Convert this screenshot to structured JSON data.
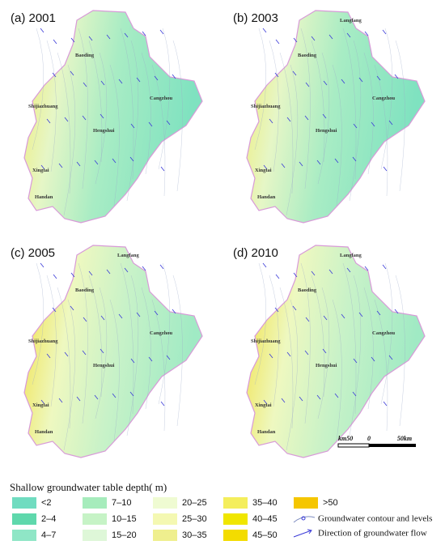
{
  "panels": [
    {
      "title": "(a) 2001",
      "cities": [
        "Baoding",
        "Cangzhou",
        "Shijiazhuang",
        "Hengshui",
        "Xingtai",
        "Handan"
      ]
    },
    {
      "title": "(b) 2003",
      "cities": [
        "Langfang",
        "Baoding",
        "Cangzhou",
        "Shijiazhuang",
        "Hengshui",
        "Xingtai",
        "Handan"
      ]
    },
    {
      "title": "(c) 2005",
      "cities": [
        "Langfang",
        "Baoding",
        "Cangzhou",
        "Shijiazhuang",
        "Hengshui",
        "Xingtai",
        "Handan"
      ]
    },
    {
      "title": "(d) 2010",
      "cities": [
        "Langfang",
        "Baoding",
        "Cangzhou",
        "Shijiazhuang",
        "Hengshui",
        "Xingtai",
        "Handan"
      ]
    }
  ],
  "scale_bar": {
    "labels": [
      "km50",
      "0",
      "50km"
    ]
  },
  "legend": {
    "title": "Shallow groundwater table depth( m)",
    "classes": [
      {
        "label": "<2",
        "color": "#70dcc0"
      },
      {
        "label": "2–4",
        "color": "#5fd8ac"
      },
      {
        "label": "4–7",
        "color": "#8fe6c6"
      },
      {
        "label": "7–10",
        "color": "#a6ecbc"
      },
      {
        "label": "10–15",
        "color": "#c6f3c6"
      },
      {
        "label": "15–20",
        "color": "#def7d8"
      },
      {
        "label": "20–25",
        "color": "#effbd2"
      },
      {
        "label": "25–30",
        "color": "#f4f8b2"
      },
      {
        "label": "30–35",
        "color": "#efef8e"
      },
      {
        "label": "35–40",
        "color": "#f4ee5c"
      },
      {
        "label": "40–45",
        "color": "#f0e600"
      },
      {
        "label": "45–50",
        "color": "#f3dc00"
      },
      {
        "label": ">50",
        "color": "#f5c600"
      }
    ],
    "symbols": [
      "Groundwater contour and levels",
      "Direction of groundwater flow"
    ]
  }
}
